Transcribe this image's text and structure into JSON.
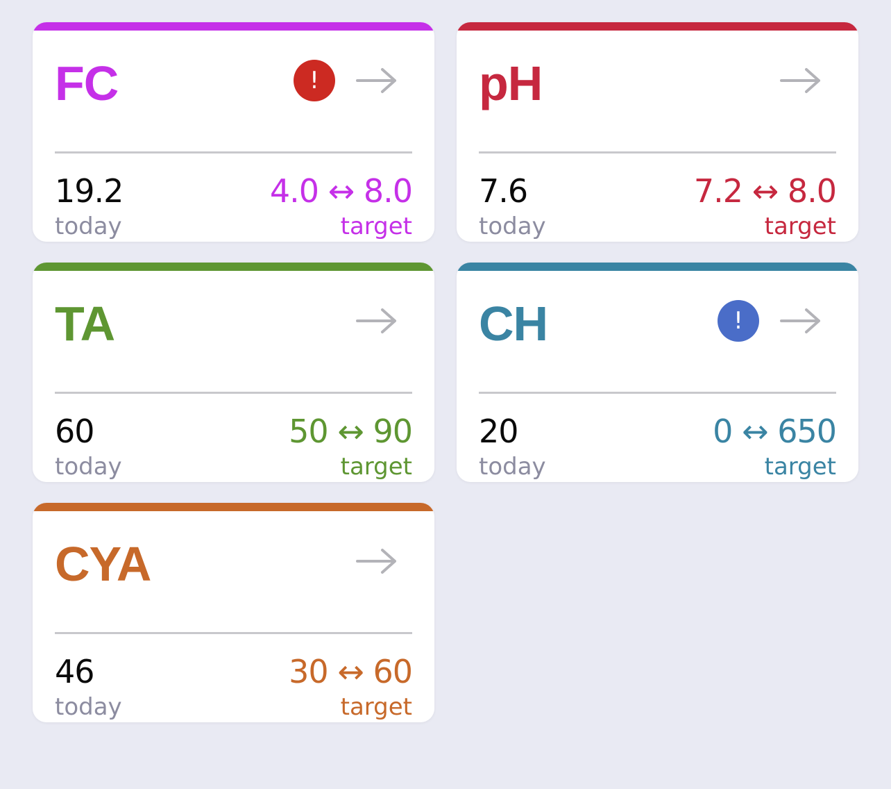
{
  "cards": [
    {
      "title": "FC",
      "color": "#c530e8",
      "alert": true,
      "alert_icon": "!",
      "alert_color": "#cc2a22",
      "today_value": "19.2",
      "today_label": "today",
      "range": "4.0 ↔ 8.0",
      "target_label": "target"
    },
    {
      "title": "pH",
      "color": "#c6283f",
      "alert": false,
      "alert_icon": "",
      "alert_color": "",
      "today_value": "7.6",
      "today_label": "today",
      "range": "7.2 ↔ 8.0",
      "target_label": "target"
    },
    {
      "title": "TA",
      "color": "#5e9632",
      "alert": false,
      "alert_icon": "",
      "alert_color": "",
      "today_value": "60",
      "today_label": "today",
      "range": "50 ↔ 90",
      "target_label": "target"
    },
    {
      "title": "CH",
      "color": "#3a84a3",
      "alert": true,
      "alert_icon": "!",
      "alert_color": "#4a6dc8",
      "today_value": "20",
      "today_label": "today",
      "range": "0 ↔ 650",
      "target_label": "target"
    },
    {
      "title": "CYA",
      "color": "#c7692a",
      "alert": false,
      "alert_icon": "",
      "alert_color": "",
      "today_value": "46",
      "today_label": "today",
      "range": "30 ↔ 60",
      "target_label": "target"
    }
  ],
  "icons": {
    "arrow": "right-arrow-icon",
    "alert": "exclamation-alert-icon"
  },
  "arrow_color": "#b3b3b8"
}
